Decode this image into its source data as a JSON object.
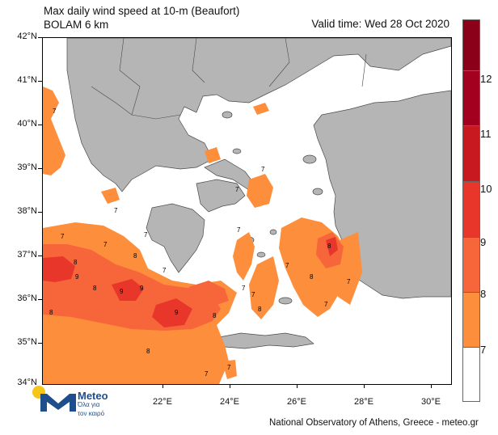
{
  "header": {
    "title_line1": "Max daily wind speed at 10-m (Beaufort)",
    "title_line2": "BOLAM 6 km",
    "valid_time": "Valid time: Wed 28 Oct 2020"
  },
  "axes": {
    "lat_labels": [
      "42°N",
      "41°N",
      "40°N",
      "39°N",
      "38°N",
      "37°N",
      "36°N",
      "35°N",
      "34°N"
    ],
    "lon_labels": [
      "22°E",
      "24°E",
      "26°E",
      "28°E",
      "30°E"
    ]
  },
  "colorbar": {
    "labels": [
      "12",
      "11",
      "10",
      "9",
      "8",
      "7"
    ],
    "colors": [
      "#8b0018",
      "#a3001f",
      "#c81920",
      "#e8372a",
      "#f7663a",
      "#fd8e3c",
      "#ffffff"
    ]
  },
  "contour_labels": [
    "7",
    "8",
    "9"
  ],
  "footer": "National Observatory of Athens, Greece - meteo.gr",
  "logo": {
    "title": "Meteo",
    "subtitle_line1": "Όλα για",
    "subtitle_line2": "τον καιρό"
  },
  "palette": {
    "land": "#b5b5b5",
    "sea": "#ffffff",
    "coast": "#4a4a4a",
    "bf7": "#fd8e3c",
    "bf8": "#f7663a",
    "bf9": "#e8372a"
  }
}
